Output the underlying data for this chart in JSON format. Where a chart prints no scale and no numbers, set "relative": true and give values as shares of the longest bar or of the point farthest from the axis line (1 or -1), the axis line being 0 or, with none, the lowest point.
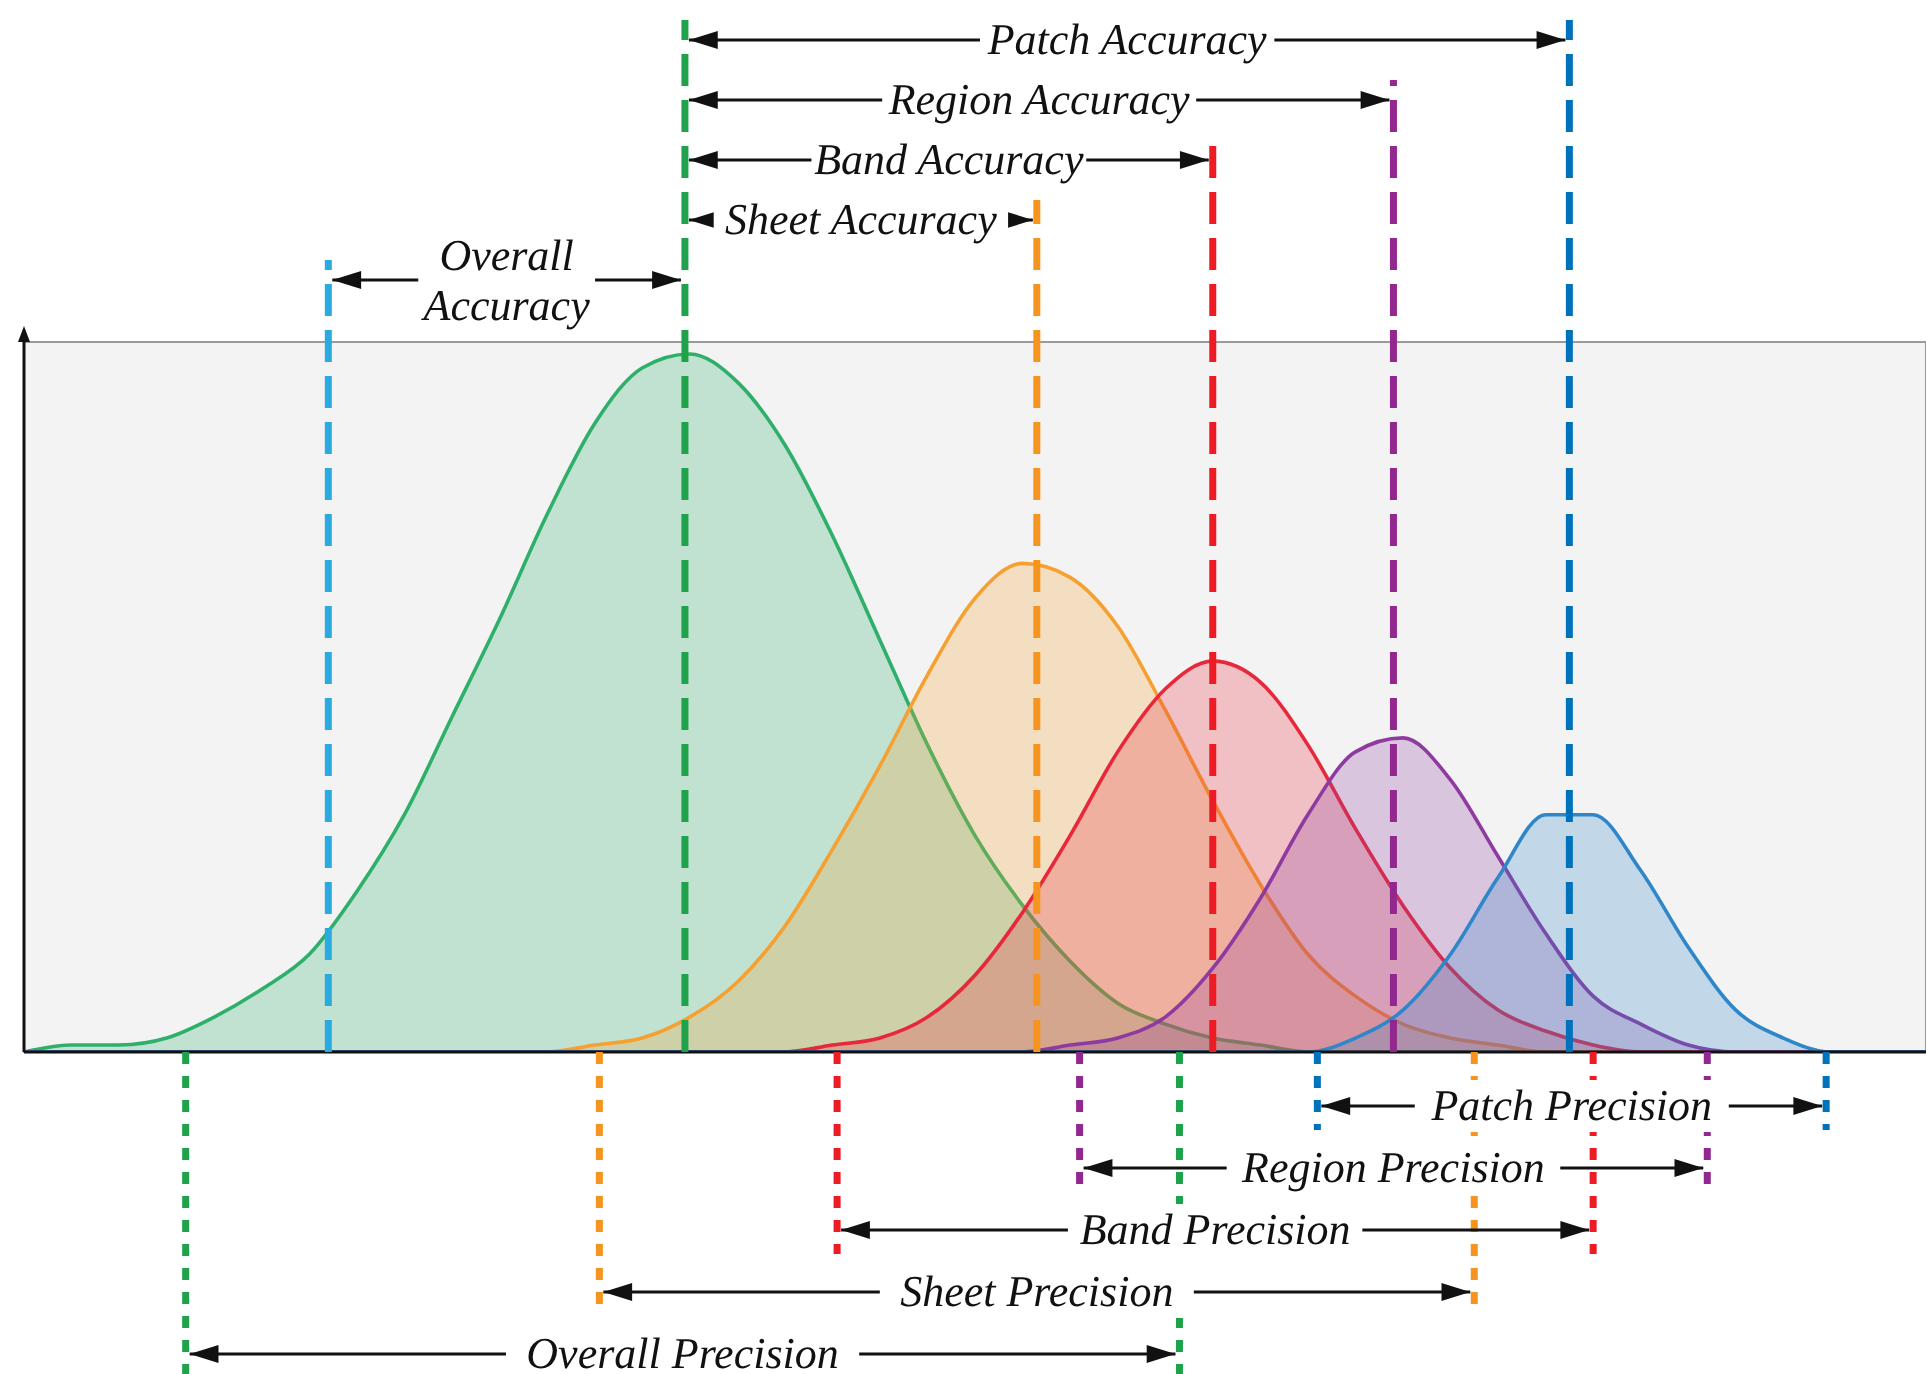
{
  "chart_data": {
    "type": "area",
    "relative": true,
    "categories": [
      null,
      null,
      null,
      null,
      null,
      null,
      null,
      null,
      null,
      null,
      null,
      null,
      null,
      null,
      null,
      null,
      null,
      null,
      null,
      null,
      null,
      null,
      null,
      null,
      null,
      null,
      null,
      null,
      null,
      null,
      null,
      null,
      null,
      null,
      null,
      null,
      null,
      null,
      null,
      null,
      null
    ],
    "series": [
      {
        "color": "#2eb06a",
        "values": [
          0,
          0.01,
          0.01,
          0.02,
          0.05,
          0.09,
          0.14,
          0.23,
          0.34,
          0.48,
          0.62,
          0.77,
          0.9,
          0.98,
          1,
          0.96,
          0.87,
          0.74,
          0.59,
          0.44,
          0.31,
          0.21,
          0.13,
          0.07,
          0.04,
          0.02,
          0.01,
          0,
          0,
          0,
          0,
          0,
          0,
          0,
          0,
          0,
          0,
          0,
          0,
          0,
          0
        ]
      },
      {
        "color": "#f5a030",
        "values": [
          0,
          0,
          0,
          0,
          0,
          0,
          0,
          0,
          0,
          0,
          0,
          0,
          0.01,
          0.02,
          0.05,
          0.1,
          0.18,
          0.29,
          0.41,
          0.54,
          0.65,
          0.7,
          0.68,
          0.61,
          0.49,
          0.36,
          0.24,
          0.14,
          0.08,
          0.04,
          0.02,
          0.01,
          0,
          0,
          0,
          0,
          0,
          0,
          0,
          0,
          0
        ]
      },
      {
        "color": "#e8283a",
        "values": [
          0,
          0,
          0,
          0,
          0,
          0,
          0,
          0,
          0,
          0,
          0,
          0,
          0,
          0,
          0,
          0,
          0,
          0.01,
          0.02,
          0.05,
          0.11,
          0.2,
          0.31,
          0.43,
          0.52,
          0.56,
          0.53,
          0.44,
          0.32,
          0.21,
          0.12,
          0.06,
          0.03,
          0.01,
          0,
          0,
          0,
          0,
          0,
          0,
          0
        ]
      },
      {
        "color": "#8e3aa0",
        "values": [
          0,
          0,
          0,
          0,
          0,
          0,
          0,
          0,
          0,
          0,
          0,
          0,
          0,
          0,
          0,
          0,
          0,
          0,
          0,
          0,
          0,
          0,
          0.01,
          0.02,
          0.05,
          0.12,
          0.22,
          0.34,
          0.43,
          0.45,
          0.39,
          0.28,
          0.17,
          0.08,
          0.04,
          0.01,
          0,
          0,
          0,
          0,
          0
        ]
      },
      {
        "color": "#2f86c8",
        "values": [
          0,
          0,
          0,
          0,
          0,
          0,
          0,
          0,
          0,
          0,
          0,
          0,
          0,
          0,
          0,
          0,
          0,
          0,
          0,
          0,
          0,
          0,
          0,
          0,
          0,
          0,
          0,
          0,
          0.02,
          0.06,
          0.14,
          0.25,
          0.34,
          0.34,
          0.26,
          0.15,
          0.06,
          0.02,
          0,
          0,
          0
        ]
      }
    ],
    "annotations": [
      "Patch Accuracy",
      "Region Accuracy",
      "Band Accuracy",
      "Sheet Accuracy",
      "Overall Accuracy",
      "Patch Precision",
      "Region Precision",
      "Band Precision",
      "Sheet Precision",
      "Overall Precision"
    ]
  }
}
